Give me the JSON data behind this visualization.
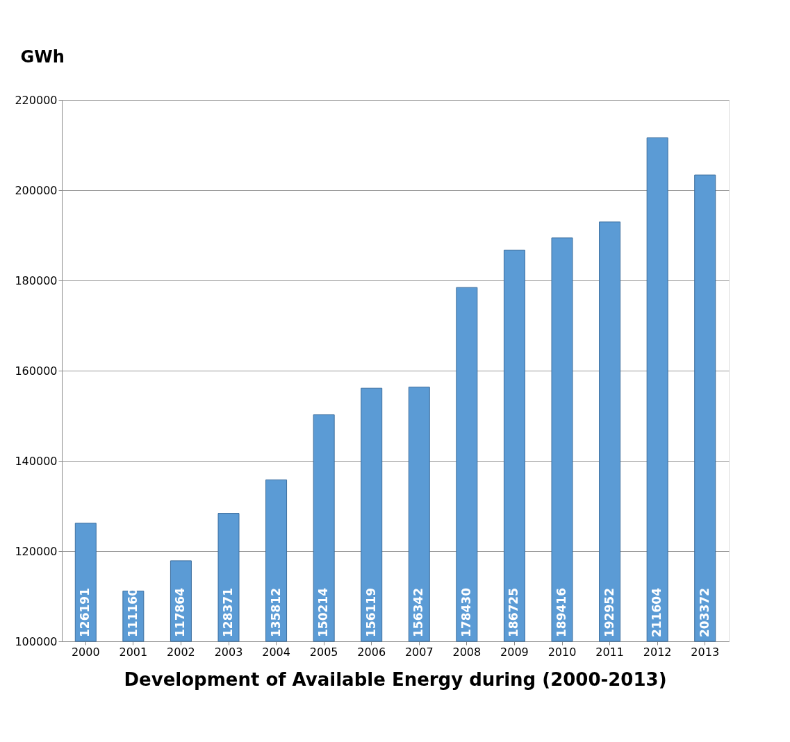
{
  "chart_data": {
    "type": "bar",
    "title": "Development of Available Energy during (2000-2013)",
    "ylabel": "GWh",
    "categories": [
      "2000",
      "2001",
      "2002",
      "2003",
      "2004",
      "2005",
      "2006",
      "2007",
      "2008",
      "2009",
      "2010",
      "2011",
      "2012",
      "2013"
    ],
    "values": [
      126191,
      111160,
      117864,
      128371,
      135812,
      150214,
      156119,
      156342,
      178430,
      186725,
      189416,
      192952,
      211604,
      203372
    ],
    "color": "#5b9bd5",
    "ylim": [
      100000,
      220000
    ],
    "yticks": [
      100000,
      120000,
      140000,
      160000,
      180000,
      200000,
      220000
    ],
    "grid": "y",
    "data_labels": true
  }
}
